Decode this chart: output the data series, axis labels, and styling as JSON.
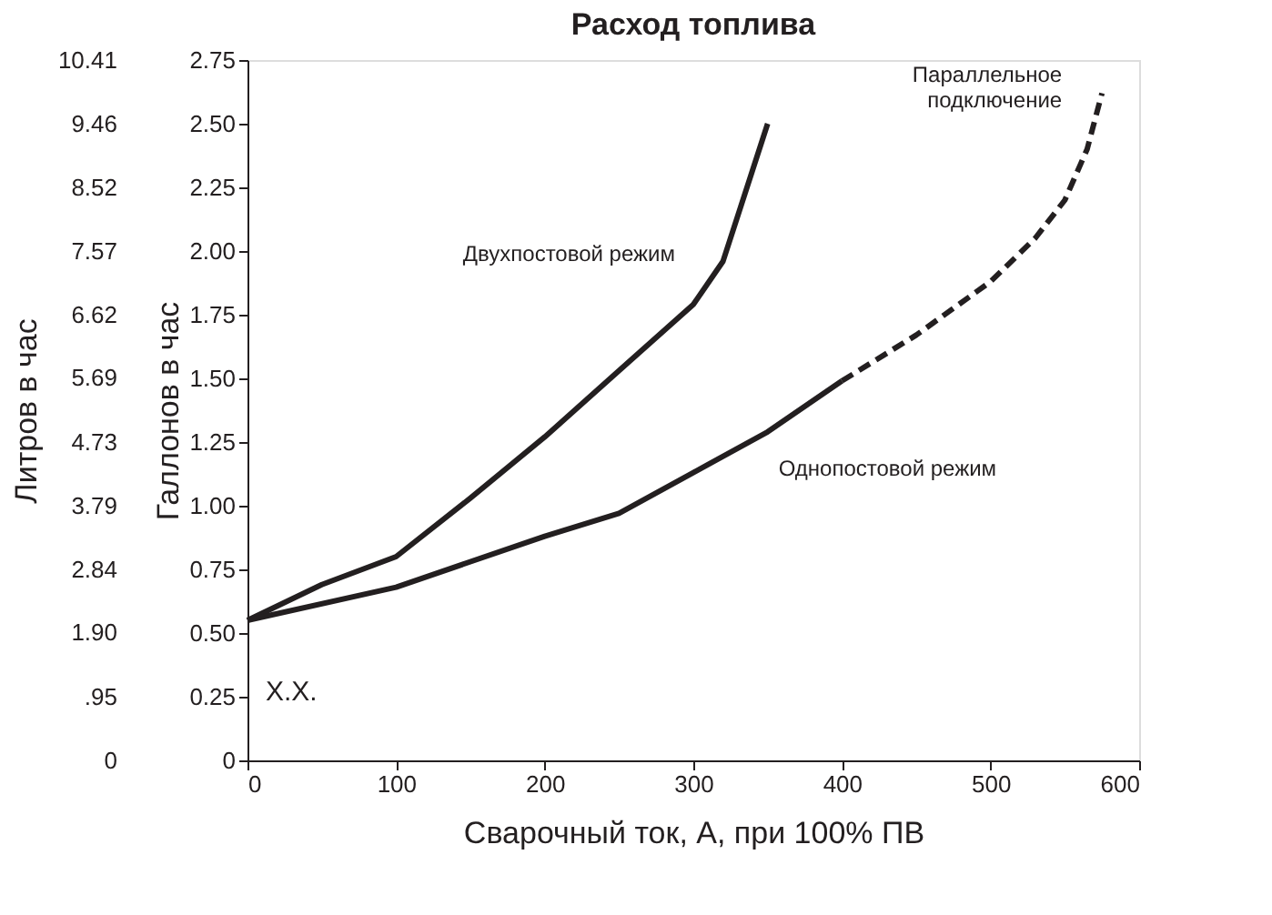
{
  "chart_data": {
    "type": "line",
    "title": "Расход топлива",
    "xlabel": "Сварочный ток, А, при 100% ПВ",
    "ylabel": "Галлонов в час",
    "y2label": "Литров в час",
    "xlim": [
      0,
      600
    ],
    "xticks": [
      0,
      100,
      200,
      300,
      400,
      500,
      600
    ],
    "ylim": [
      0,
      2.75
    ],
    "yticks": [
      0,
      0.25,
      {
        "value": 0.5,
        "label": "0.50"
      },
      0.75,
      {
        "value": 1,
        "label": "1.00"
      },
      1.25,
      {
        "value": 1.5,
        "label": "1.50"
      },
      1.75,
      {
        "value": 2,
        "label": "2.00"
      },
      2.25,
      {
        "value": 2.5,
        "label": "2.50"
      },
      2.75
    ],
    "y2lim": [
      0,
      10.41
    ],
    "y2ticks": [
      0,
      {
        "value": 0.95,
        "label": ".95"
      },
      {
        "value": 1.9,
        "label": "1.90"
      },
      2.84,
      3.79,
      4.73,
      5.69,
      6.62,
      7.57,
      8.52,
      9.46,
      10.41
    ],
    "grid": false,
    "legend": false,
    "marker": "none",
    "annotations": [
      "X.X."
    ],
    "series": [
      {
        "name": "Двухпостовой режим",
        "color": "#231f20",
        "line_style": "solid",
        "x": [
          0,
          50,
          100,
          150,
          200,
          250,
          300,
          320,
          350
        ],
        "values": [
          0.55,
          0.69,
          0.8,
          1.03,
          1.27,
          1.53,
          1.79,
          1.96,
          2.5
        ]
      },
      {
        "name": "Однопостовой режим",
        "color": "#231f20",
        "line_style": "solid",
        "x": [
          0,
          100,
          200,
          250,
          300,
          350,
          400
        ],
        "values": [
          0.55,
          0.68,
          0.88,
          0.97,
          1.13,
          1.29,
          1.49
        ]
      },
      {
        "name": "Параллельное\nподключение",
        "color": "#231f20",
        "line_style": "dashed",
        "x": [
          400,
          450,
          500,
          530,
          550,
          565,
          575
        ],
        "values": [
          1.49,
          1.67,
          1.88,
          2.05,
          2.2,
          2.4,
          2.62
        ]
      }
    ]
  }
}
